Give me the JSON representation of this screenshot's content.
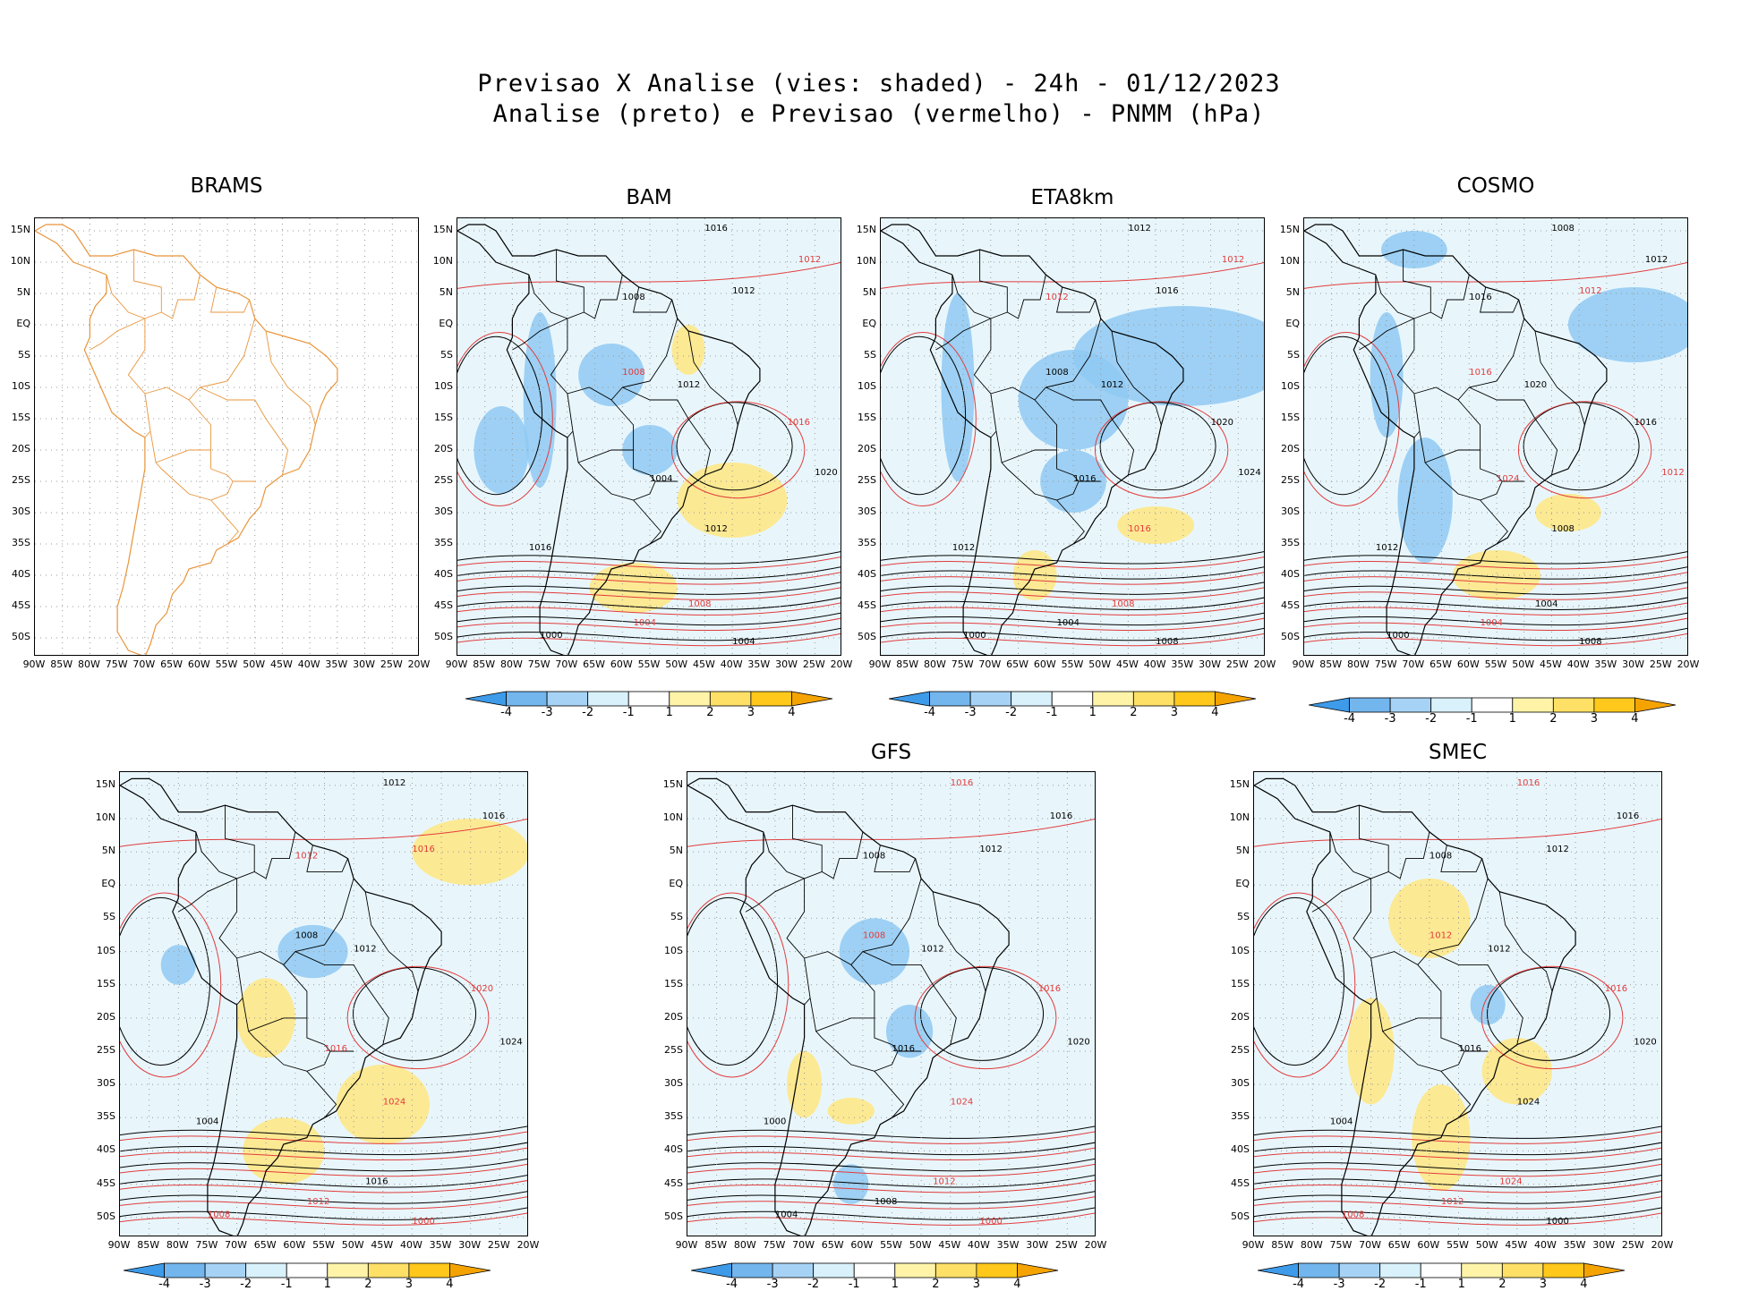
{
  "header": {
    "title_line1": "Previsao X Analise (vies: shaded) - 24h - 01/12/2023",
    "title_line2": "Analise (preto) e Previsao (vermelho) - PNMM (hPa)"
  },
  "lat_labels": [
    "15N",
    "10N",
    "5N",
    "EQ",
    "5S",
    "10S",
    "15S",
    "20S",
    "25S",
    "30S",
    "35S",
    "40S",
    "45S",
    "50S"
  ],
  "lon_labels": [
    "90W",
    "85W",
    "80W",
    "75W",
    "70W",
    "65W",
    "60W",
    "55W",
    "50W",
    "45W",
    "40W",
    "35W",
    "30W",
    "25W",
    "20W"
  ],
  "colorbar": {
    "labels": [
      "-4",
      "-3",
      "-2",
      "-1",
      "1",
      "2",
      "3",
      "4"
    ],
    "colors": [
      "#3d9be9",
      "#73b6ee",
      "#a6d3f5",
      "#d8f1fb",
      "#ffffff",
      "#fff3a8",
      "#ffe066",
      "#ffc81a",
      "#f5a300"
    ]
  },
  "colors": {
    "analysis": "#000000",
    "forecast": "#e23b3b",
    "brams_border": "#e8953a",
    "bias_neg": "#8fc9f2",
    "bias_pos": "#ffe680"
  },
  "panels": [
    {
      "id": "brams",
      "name": "BRAMS",
      "has_data": false,
      "labels": []
    },
    {
      "id": "bam",
      "name": "BAM",
      "has_data": true,
      "labels": [
        {
          "t": "1016",
          "c": "k"
        },
        {
          "t": "1012",
          "c": "r"
        },
        {
          "t": "1012",
          "c": "k"
        },
        {
          "t": "1008",
          "c": "k"
        },
        {
          "t": "1008",
          "c": "r"
        },
        {
          "t": "1012",
          "c": "k"
        },
        {
          "t": "1004",
          "c": "k"
        },
        {
          "t": "1016",
          "c": "r"
        },
        {
          "t": "1020",
          "c": "k"
        },
        {
          "t": "1012",
          "c": "k"
        },
        {
          "t": "1008",
          "c": "r"
        },
        {
          "t": "1004",
          "c": "r"
        },
        {
          "t": "1000",
          "c": "k"
        },
        {
          "t": "1016",
          "c": "k"
        },
        {
          "t": "1004",
          "c": "k"
        }
      ]
    },
    {
      "id": "eta8km",
      "name": "ETA8km",
      "has_data": true,
      "labels": [
        {
          "t": "1012",
          "c": "k"
        },
        {
          "t": "1012",
          "c": "r"
        },
        {
          "t": "1016",
          "c": "k"
        },
        {
          "t": "1012",
          "c": "r"
        },
        {
          "t": "1008",
          "c": "k"
        },
        {
          "t": "1012",
          "c": "k"
        },
        {
          "t": "1016",
          "c": "k"
        },
        {
          "t": "1020",
          "c": "k"
        },
        {
          "t": "1024",
          "c": "k"
        },
        {
          "t": "1016",
          "c": "r"
        },
        {
          "t": "1008",
          "c": "r"
        },
        {
          "t": "1004",
          "c": "k"
        },
        {
          "t": "1000",
          "c": "k"
        },
        {
          "t": "1012",
          "c": "k"
        },
        {
          "t": "1008",
          "c": "k"
        }
      ]
    },
    {
      "id": "cosmo",
      "name": "COSMO",
      "has_data": true,
      "labels": [
        {
          "t": "1008",
          "c": "k"
        },
        {
          "t": "1012",
          "c": "k"
        },
        {
          "t": "1012",
          "c": "r"
        },
        {
          "t": "1016",
          "c": "k"
        },
        {
          "t": "1016",
          "c": "r"
        },
        {
          "t": "1020",
          "c": "k"
        },
        {
          "t": "1024",
          "c": "r"
        },
        {
          "t": "1016",
          "c": "k"
        },
        {
          "t": "1012",
          "c": "r"
        },
        {
          "t": "1008",
          "c": "k"
        },
        {
          "t": "1004",
          "c": "k"
        },
        {
          "t": "1004",
          "c": "r"
        },
        {
          "t": "1000",
          "c": "k"
        },
        {
          "t": "1012",
          "c": "k"
        },
        {
          "t": "1008",
          "c": "k"
        }
      ]
    },
    {
      "id": "model5",
      "name": "",
      "has_data": true,
      "labels": [
        {
          "t": "1012",
          "c": "k"
        },
        {
          "t": "1016",
          "c": "k"
        },
        {
          "t": "1016",
          "c": "r"
        },
        {
          "t": "1012",
          "c": "r"
        },
        {
          "t": "1008",
          "c": "k"
        },
        {
          "t": "1012",
          "c": "k"
        },
        {
          "t": "1016",
          "c": "r"
        },
        {
          "t": "1020",
          "c": "r"
        },
        {
          "t": "1024",
          "c": "k"
        },
        {
          "t": "1024",
          "c": "r"
        },
        {
          "t": "1016",
          "c": "k"
        },
        {
          "t": "1012",
          "c": "r"
        },
        {
          "t": "1008",
          "c": "r"
        },
        {
          "t": "1004",
          "c": "k"
        },
        {
          "t": "1000",
          "c": "r"
        }
      ]
    },
    {
      "id": "gfs",
      "name": "GFS",
      "has_data": true,
      "labels": [
        {
          "t": "1016",
          "c": "r"
        },
        {
          "t": "1016",
          "c": "k"
        },
        {
          "t": "1012",
          "c": "k"
        },
        {
          "t": "1008",
          "c": "k"
        },
        {
          "t": "1008",
          "c": "r"
        },
        {
          "t": "1012",
          "c": "k"
        },
        {
          "t": "1016",
          "c": "k"
        },
        {
          "t": "1016",
          "c": "r"
        },
        {
          "t": "1020",
          "c": "k"
        },
        {
          "t": "1024",
          "c": "r"
        },
        {
          "t": "1012",
          "c": "r"
        },
        {
          "t": "1008",
          "c": "k"
        },
        {
          "t": "1004",
          "c": "k"
        },
        {
          "t": "1000",
          "c": "k"
        },
        {
          "t": "1000",
          "c": "r"
        }
      ]
    },
    {
      "id": "smec",
      "name": "SMEC",
      "has_data": true,
      "labels": [
        {
          "t": "1016",
          "c": "r"
        },
        {
          "t": "1016",
          "c": "k"
        },
        {
          "t": "1012",
          "c": "k"
        },
        {
          "t": "1008",
          "c": "k"
        },
        {
          "t": "1012",
          "c": "r"
        },
        {
          "t": "1012",
          "c": "k"
        },
        {
          "t": "1016",
          "c": "k"
        },
        {
          "t": "1016",
          "c": "r"
        },
        {
          "t": "1020",
          "c": "k"
        },
        {
          "t": "1024",
          "c": "k"
        },
        {
          "t": "1024",
          "c": "r"
        },
        {
          "t": "1012",
          "c": "r"
        },
        {
          "t": "1008",
          "c": "r"
        },
        {
          "t": "1004",
          "c": "k"
        },
        {
          "t": "1000",
          "c": "k"
        }
      ]
    }
  ]
}
